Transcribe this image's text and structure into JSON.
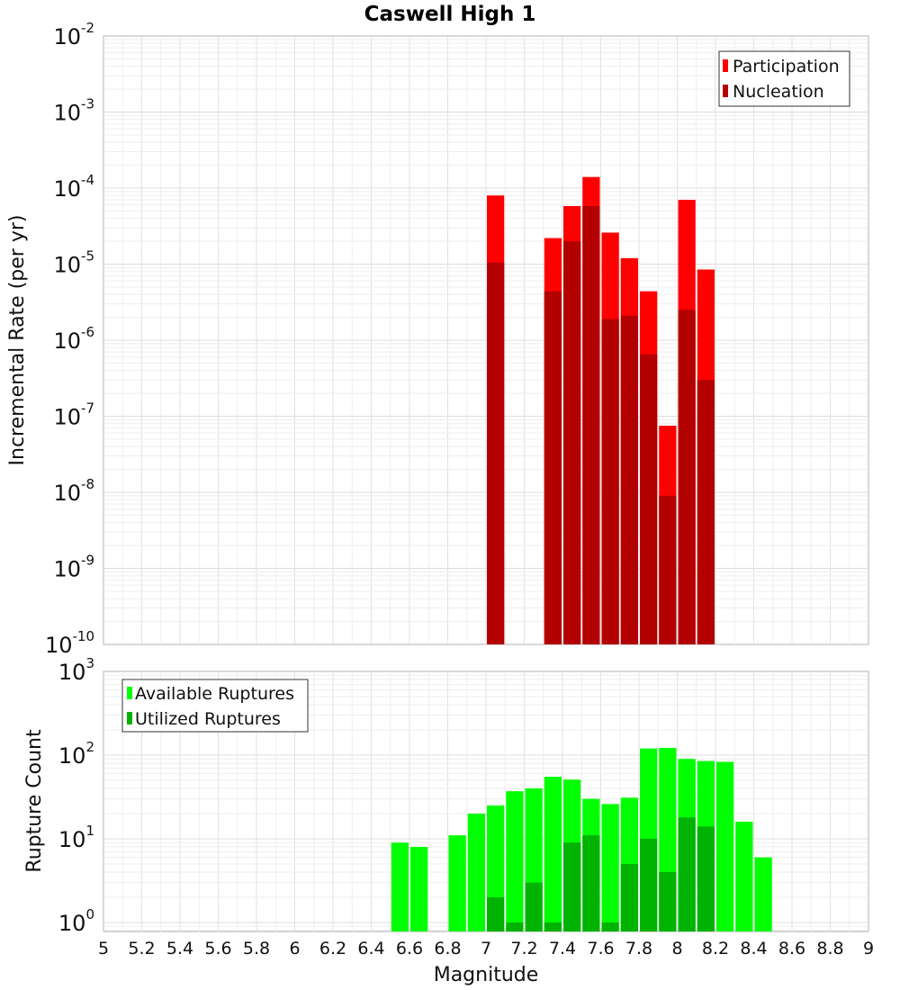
{
  "chart_data": [
    {
      "type": "bar",
      "title": "Caswell High 1",
      "ylabel": "Incremental Rate (per yr)",
      "xlabel": "",
      "yscale": "log",
      "xlim": [
        5,
        9
      ],
      "ylim": [
        1e-10,
        0.01
      ],
      "ytick_exponents": [
        "-10",
        "-9",
        "-8",
        "-7",
        "-6",
        "-5",
        "-4",
        "-3",
        "-2"
      ],
      "ytick_base": "10",
      "legend_position": "top-right",
      "bar_width": 0.1,
      "series": [
        {
          "name": "Participation",
          "color": "#ff0000",
          "x": [
            7.05,
            7.25,
            7.35,
            7.45,
            7.55,
            7.65,
            7.75,
            7.85,
            7.95,
            8.05,
            8.15
          ],
          "values": [
            8e-05,
            0,
            2.2e-05,
            5.8e-05,
            0.00014,
            2.6e-05,
            1.2e-05,
            4.4e-06,
            7.5e-08,
            7e-05,
            8.5e-06
          ]
        },
        {
          "name": "Nucleation",
          "color": "#b30000",
          "x": [
            7.05,
            7.25,
            7.35,
            7.45,
            7.55,
            7.65,
            7.75,
            7.85,
            7.95,
            8.05,
            8.15
          ],
          "values": [
            1.05e-05,
            0,
            4.4e-06,
            2e-05,
            5.8e-05,
            1.9e-06,
            2.1e-06,
            6.5e-07,
            9e-09,
            2.5e-06,
            3e-07
          ]
        }
      ]
    },
    {
      "type": "bar",
      "title": "",
      "ylabel": "Rupture Count",
      "xlabel": "Magnitude",
      "yscale": "log",
      "xlim": [
        5,
        9
      ],
      "ylim": [
        0.78,
        1000
      ],
      "ytick_exponents": [
        "0",
        "1",
        "2",
        "3"
      ],
      "ytick_base": "10",
      "xticks": [
        "5",
        "5.2",
        "5.4",
        "5.6",
        "5.8",
        "6",
        "6.2",
        "6.4",
        "6.6",
        "6.8",
        "7",
        "7.2",
        "7.4",
        "7.6",
        "7.8",
        "8",
        "8.2",
        "8.4",
        "8.6",
        "8.8",
        "9"
      ],
      "legend_position": "top-left",
      "bar_width": 0.1,
      "series": [
        {
          "name": "Available Ruptures",
          "color": "#00ff00",
          "x": [
            6.55,
            6.65,
            6.85,
            6.95,
            7.05,
            7.15,
            7.25,
            7.35,
            7.45,
            7.55,
            7.65,
            7.75,
            7.85,
            7.95,
            8.05,
            8.15,
            8.25,
            8.35,
            8.45
          ],
          "values": [
            9,
            8,
            11,
            20,
            25,
            37,
            40,
            55,
            51,
            30,
            26,
            31,
            120,
            122,
            90,
            85,
            83,
            16,
            6
          ]
        },
        {
          "name": "Utilized Ruptures",
          "color": "#00b300",
          "x": [
            7.05,
            7.15,
            7.25,
            7.35,
            7.45,
            7.55,
            7.65,
            7.75,
            7.85,
            7.95,
            8.05,
            8.15
          ],
          "values": [
            2,
            1,
            3,
            1,
            9,
            11,
            1,
            5,
            10,
            4,
            18,
            14
          ]
        }
      ]
    }
  ]
}
